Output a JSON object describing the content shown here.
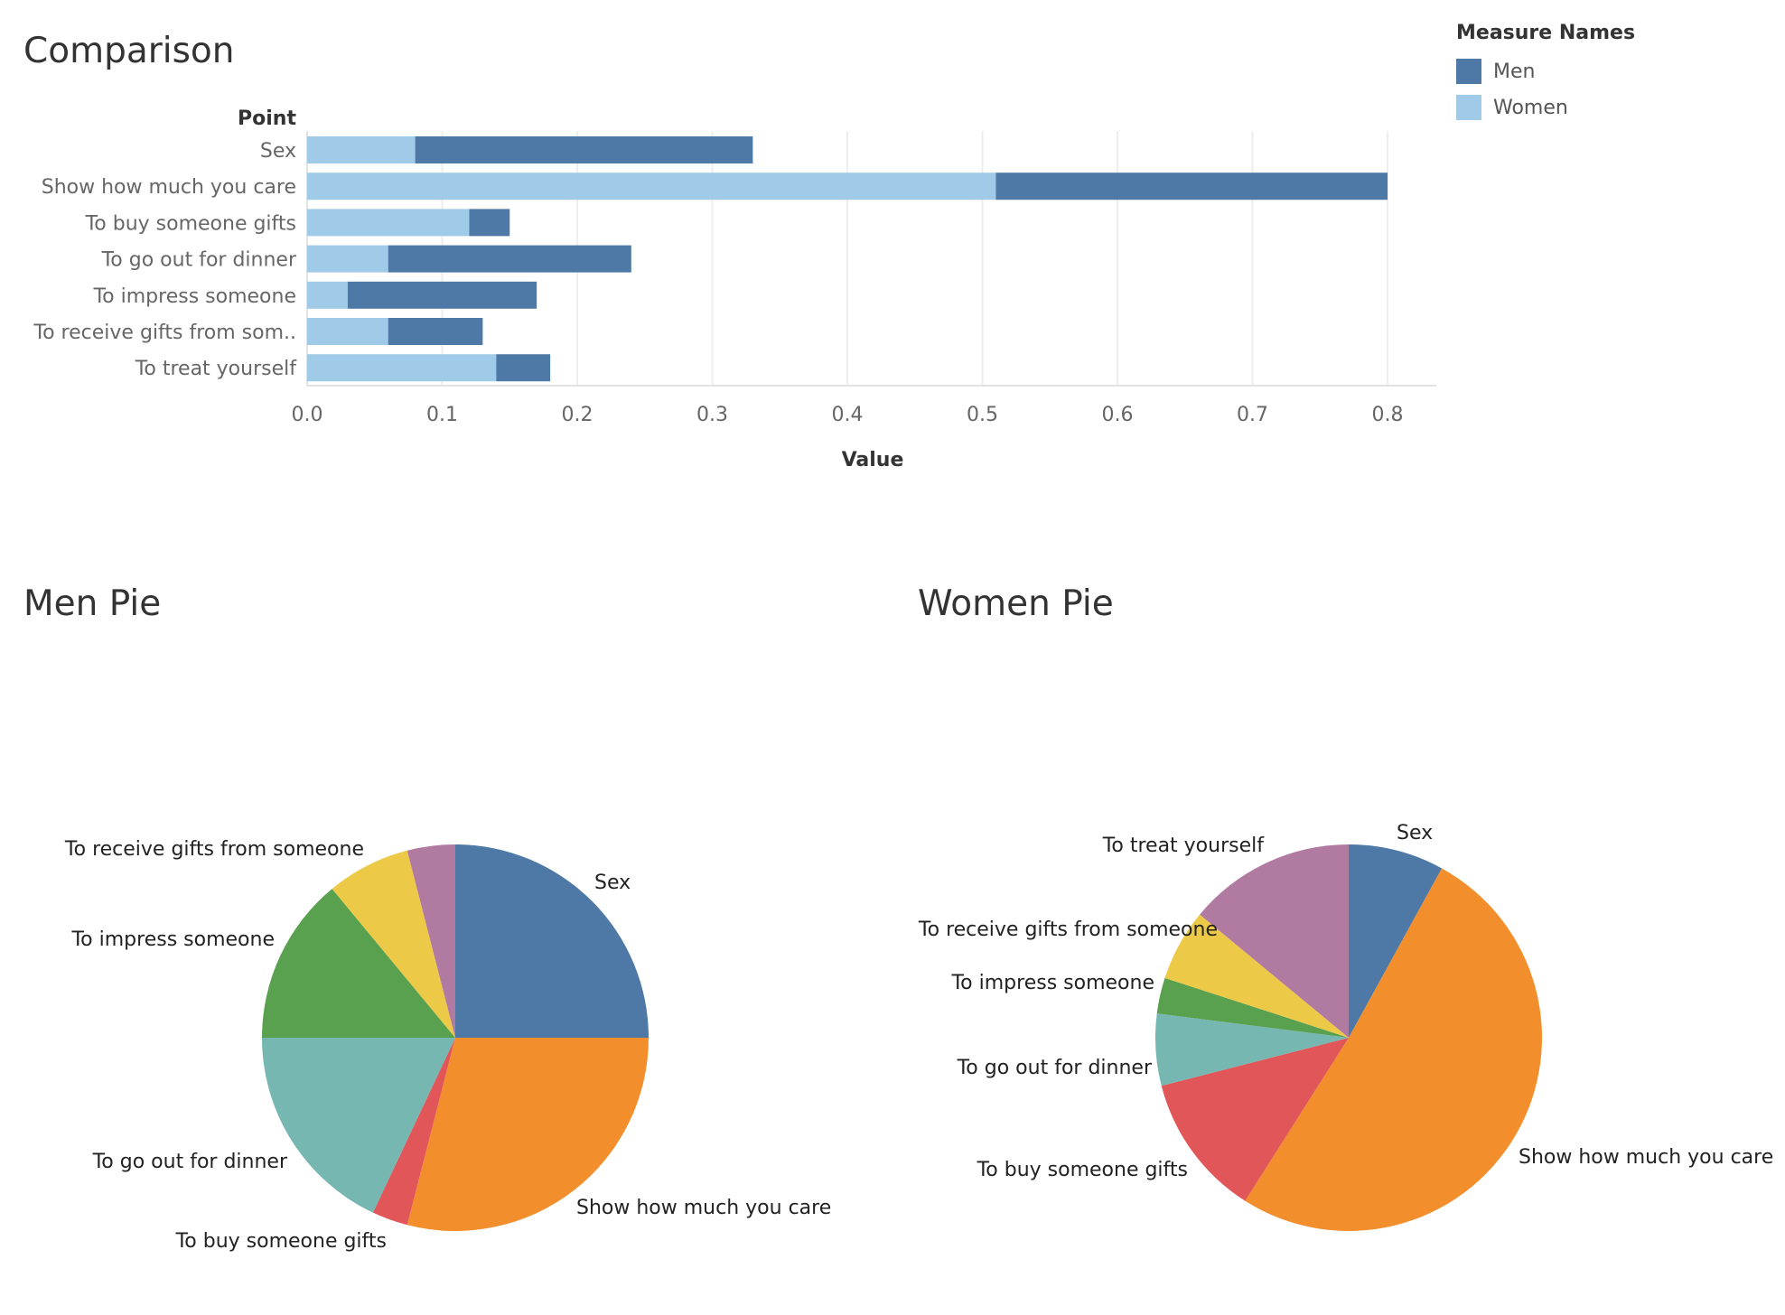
{
  "colors": {
    "men": "#4e79a7",
    "women": "#a0cbe8",
    "grid": "#eeeeee",
    "axis_text": "#666666"
  },
  "titles": {
    "comparison": "Comparison",
    "men_pie": "Men Pie",
    "women_pie": "Women Pie"
  },
  "legend": {
    "title": "Measure Names",
    "items": [
      {
        "label": "Men",
        "color": "#4e79a7"
      },
      {
        "label": "Women",
        "color": "#a0cbe8"
      }
    ]
  },
  "chart_data": [
    {
      "type": "bar",
      "stacked": true,
      "orientation": "horizontal",
      "title": "Comparison",
      "category_header": "Point",
      "xlabel": "Value",
      "categories": [
        "Sex",
        "Show how much you care",
        "To buy someone gifts",
        "To go out for dinner",
        "To impress someone",
        "To receive gifts from som..",
        "To treat yourself"
      ],
      "series": [
        {
          "name": "Women",
          "values": [
            0.08,
            0.51,
            0.12,
            0.06,
            0.03,
            0.06,
            0.14
          ]
        },
        {
          "name": "Men",
          "values": [
            0.25,
            0.29,
            0.03,
            0.18,
            0.14,
            0.07,
            0.04
          ]
        }
      ],
      "xlim": [
        0,
        0.84
      ],
      "xticks": [
        "0.0",
        "0.1",
        "0.2",
        "0.3",
        "0.4",
        "0.5",
        "0.6",
        "0.7",
        "0.8"
      ],
      "grid": true,
      "legend_position": "top-right"
    },
    {
      "type": "pie",
      "title": "Men Pie",
      "slices": [
        {
          "label": "Sex",
          "value": 0.25,
          "color": "#4e79a7"
        },
        {
          "label": "Show how much you care",
          "value": 0.29,
          "color": "#f28e2b"
        },
        {
          "label": "To buy someone gifts",
          "value": 0.03,
          "color": "#e15759"
        },
        {
          "label": "To go out for dinner",
          "value": 0.18,
          "color": "#76b7b2"
        },
        {
          "label": "To impress someone",
          "value": 0.14,
          "color": "#59a14f"
        },
        {
          "label": "To receive gifts from someone",
          "value": 0.07,
          "color": "#edc948"
        },
        {
          "label": "To treat yourself",
          "value": 0.04,
          "color": "#b07aa1",
          "label_visible": false
        }
      ]
    },
    {
      "type": "pie",
      "title": "Women Pie",
      "slices": [
        {
          "label": "Sex",
          "value": 0.08,
          "color": "#4e79a7"
        },
        {
          "label": "Show how much you care",
          "value": 0.51,
          "color": "#f28e2b"
        },
        {
          "label": "To buy someone gifts",
          "value": 0.12,
          "color": "#e15759"
        },
        {
          "label": "To go out for dinner",
          "value": 0.06,
          "color": "#76b7b2"
        },
        {
          "label": "To impress someone",
          "value": 0.03,
          "color": "#59a14f"
        },
        {
          "label": "To receive gifts from someone",
          "value": 0.06,
          "color": "#edc948"
        },
        {
          "label": "To treat yourself",
          "value": 0.14,
          "color": "#b07aa1"
        }
      ]
    }
  ]
}
